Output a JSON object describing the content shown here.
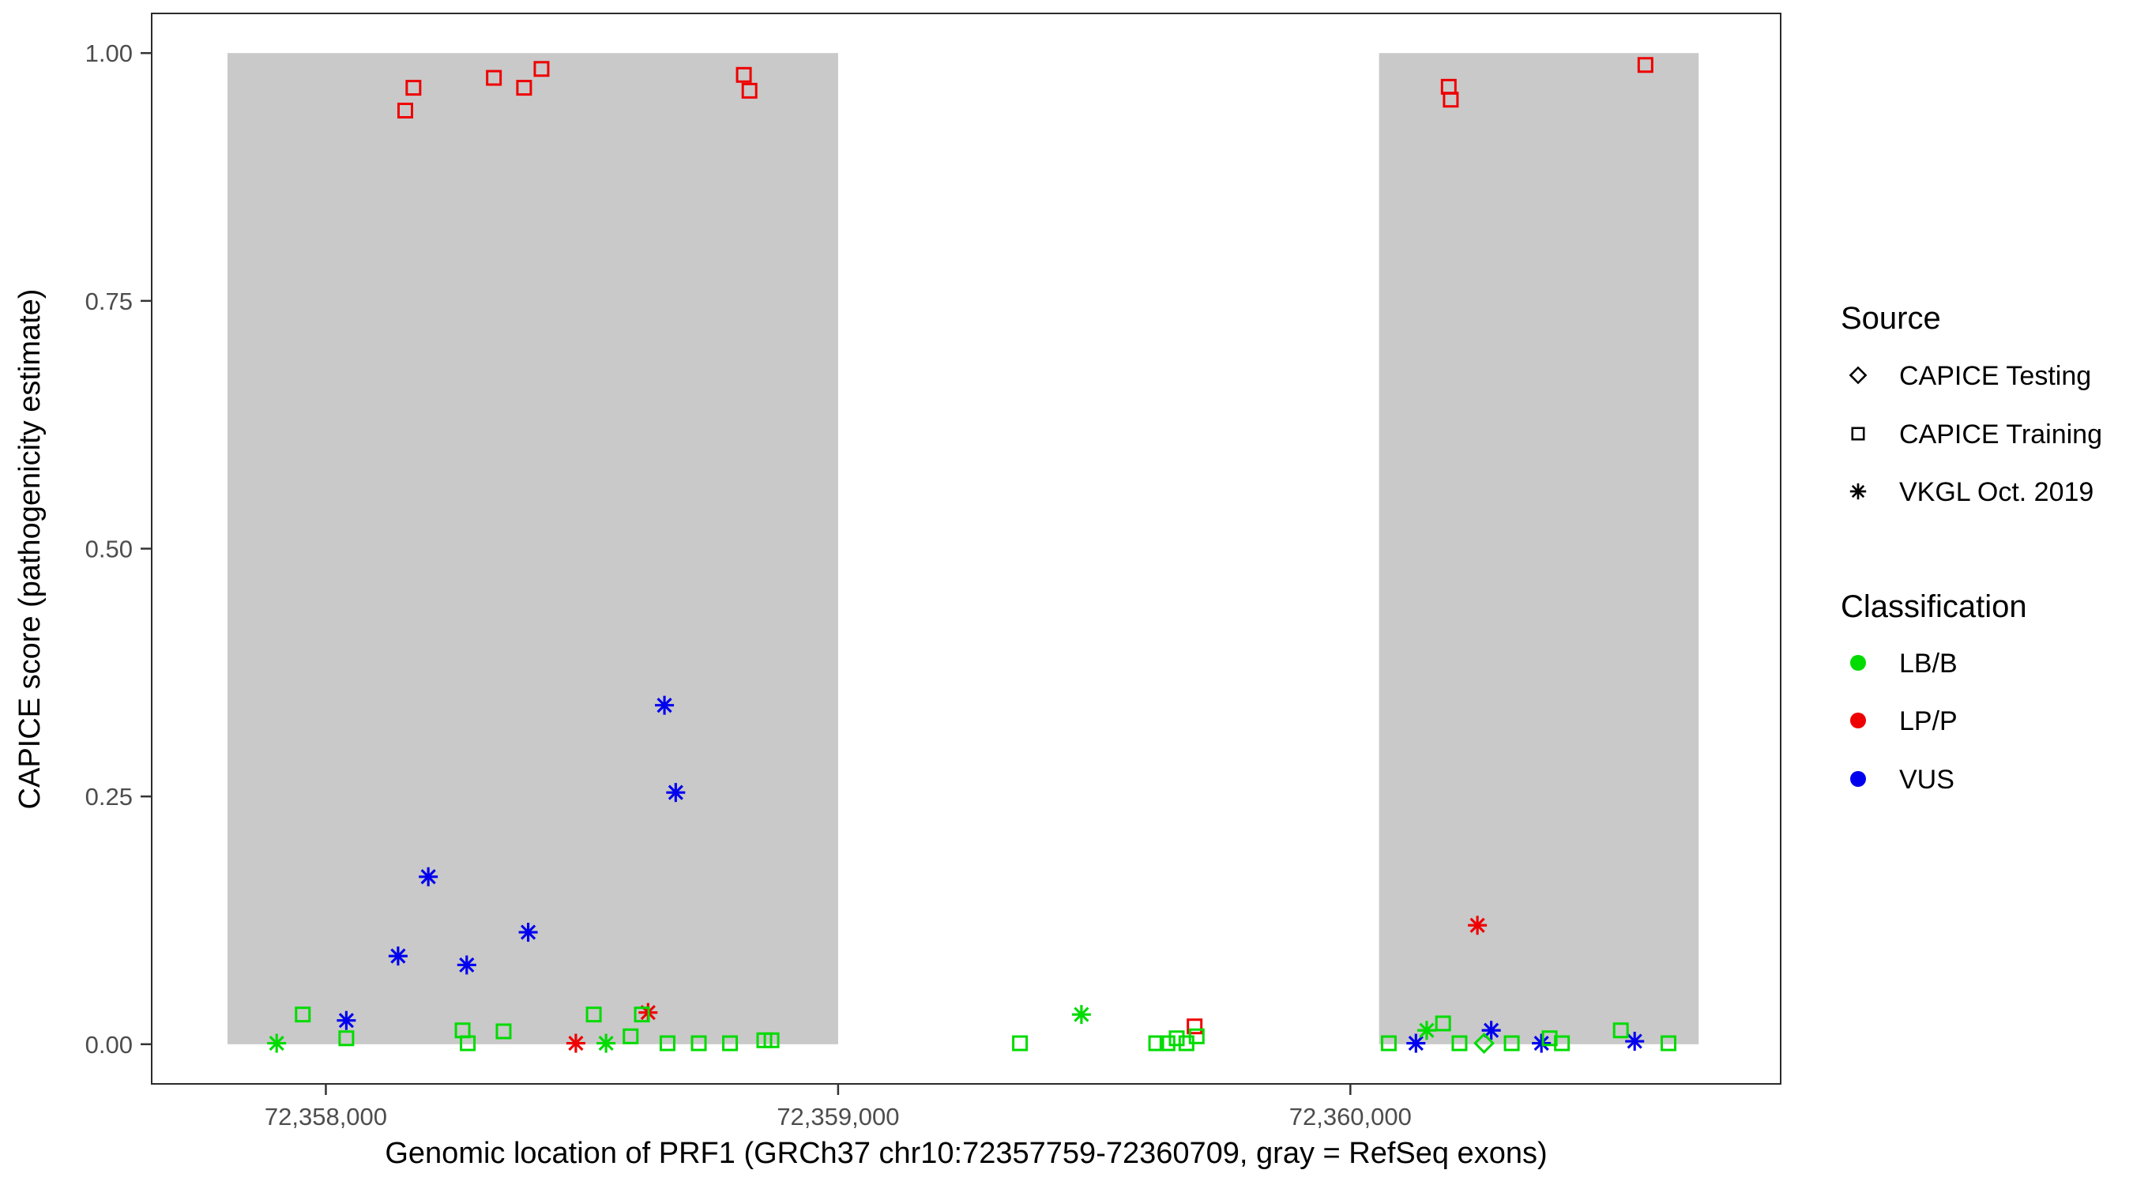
{
  "chart_data": {
    "type": "scatter",
    "title": "",
    "xlabel": "Genomic location of PRF1 (GRCh37 chr10:72357759-72360709, gray = RefSeq exons)",
    "ylabel": "CAPICE score (pathogenicity estimate)",
    "x_domain": [
      72357660,
      72360840
    ],
    "y_domain": [
      -0.04,
      1.04
    ],
    "x_ticks": [
      {
        "value": 72358000,
        "label": "72,358,000"
      },
      {
        "value": 72359000,
        "label": "72,359,000"
      },
      {
        "value": 72360000,
        "label": "72,360,000"
      }
    ],
    "y_ticks": [
      {
        "value": 0.0,
        "label": "0.00"
      },
      {
        "value": 0.25,
        "label": "0.25"
      },
      {
        "value": 0.5,
        "label": "0.50"
      },
      {
        "value": 0.75,
        "label": "0.75"
      },
      {
        "value": 1.0,
        "label": "1.00"
      }
    ],
    "grid": false,
    "exon_color": "#C9C9C9",
    "exons": [
      {
        "x_start": 72357808,
        "x_end": 72359000,
        "y_start": 0.0,
        "y_end": 1.0
      },
      {
        "x_start": 72360056,
        "x_end": 72360680,
        "y_start": 0.0,
        "y_end": 1.0
      }
    ],
    "legend": {
      "source_title": "Source",
      "classification_title": "Classification",
      "position": "right"
    },
    "sources": [
      {
        "id": "testing",
        "label": "CAPICE Testing",
        "shape": "diamond"
      },
      {
        "id": "training",
        "label": "CAPICE Training",
        "shape": "square"
      },
      {
        "id": "vkgl",
        "label": "VKGL Oct. 2019",
        "shape": "asterisk"
      }
    ],
    "classifications": [
      {
        "id": "LB/B",
        "label": "LB/B",
        "color": "#00DB00"
      },
      {
        "id": "LP/P",
        "label": "LP/P",
        "color": "#EE0000"
      },
      {
        "id": "VUS",
        "label": "VUS",
        "color": "#0000EE"
      }
    ],
    "points": [
      {
        "x": 72358155,
        "y": 0.942,
        "source": "training",
        "class": "LP/P"
      },
      {
        "x": 72358171,
        "y": 0.965,
        "source": "training",
        "class": "LP/P"
      },
      {
        "x": 72358328,
        "y": 0.975,
        "source": "training",
        "class": "LP/P"
      },
      {
        "x": 72358387,
        "y": 0.965,
        "source": "training",
        "class": "LP/P"
      },
      {
        "x": 72358421,
        "y": 0.984,
        "source": "training",
        "class": "LP/P"
      },
      {
        "x": 72358816,
        "y": 0.978,
        "source": "training",
        "class": "LP/P"
      },
      {
        "x": 72358827,
        "y": 0.962,
        "source": "training",
        "class": "LP/P"
      },
      {
        "x": 72360192,
        "y": 0.966,
        "source": "training",
        "class": "LP/P"
      },
      {
        "x": 72360196,
        "y": 0.953,
        "source": "training",
        "class": "LP/P"
      },
      {
        "x": 72360576,
        "y": 0.988,
        "source": "training",
        "class": "LP/P"
      },
      {
        "x": 72359696,
        "y": 0.018,
        "source": "training",
        "class": "LP/P"
      },
      {
        "x": 72358040,
        "y": 0.024,
        "source": "vkgl",
        "class": "VUS"
      },
      {
        "x": 72358141,
        "y": 0.089,
        "source": "vkgl",
        "class": "VUS"
      },
      {
        "x": 72358200,
        "y": 0.169,
        "source": "vkgl",
        "class": "VUS"
      },
      {
        "x": 72358275,
        "y": 0.08,
        "source": "vkgl",
        "class": "VUS"
      },
      {
        "x": 72358395,
        "y": 0.113,
        "source": "vkgl",
        "class": "VUS"
      },
      {
        "x": 72358661,
        "y": 0.342,
        "source": "vkgl",
        "class": "VUS"
      },
      {
        "x": 72358683,
        "y": 0.254,
        "source": "vkgl",
        "class": "VUS"
      },
      {
        "x": 72360128,
        "y": 0.001,
        "source": "vkgl",
        "class": "VUS"
      },
      {
        "x": 72360275,
        "y": 0.014,
        "source": "vkgl",
        "class": "VUS"
      },
      {
        "x": 72360373,
        "y": 0.001,
        "source": "vkgl",
        "class": "VUS"
      },
      {
        "x": 72360555,
        "y": 0.003,
        "source": "vkgl",
        "class": "VUS"
      },
      {
        "x": 72358488,
        "y": 0.001,
        "source": "vkgl",
        "class": "LP/P"
      },
      {
        "x": 72358629,
        "y": 0.032,
        "source": "vkgl",
        "class": "LP/P"
      },
      {
        "x": 72360248,
        "y": 0.12,
        "source": "vkgl",
        "class": "LP/P"
      },
      {
        "x": 72357904,
        "y": 0.001,
        "source": "vkgl",
        "class": "LB/B"
      },
      {
        "x": 72358547,
        "y": 0.001,
        "source": "vkgl",
        "class": "LB/B"
      },
      {
        "x": 72359475,
        "y": 0.03,
        "source": "vkgl",
        "class": "LB/B"
      },
      {
        "x": 72360149,
        "y": 0.014,
        "source": "vkgl",
        "class": "LB/B"
      },
      {
        "x": 72357955,
        "y": 0.03,
        "source": "training",
        "class": "LB/B"
      },
      {
        "x": 72358040,
        "y": 0.006,
        "source": "training",
        "class": "LB/B"
      },
      {
        "x": 72358267,
        "y": 0.014,
        "source": "training",
        "class": "LB/B"
      },
      {
        "x": 72358277,
        "y": 0.001,
        "source": "training",
        "class": "LB/B"
      },
      {
        "x": 72358347,
        "y": 0.013,
        "source": "training",
        "class": "LB/B"
      },
      {
        "x": 72358523,
        "y": 0.03,
        "source": "training",
        "class": "LB/B"
      },
      {
        "x": 72358595,
        "y": 0.008,
        "source": "training",
        "class": "LB/B"
      },
      {
        "x": 72358617,
        "y": 0.03,
        "source": "training",
        "class": "LB/B"
      },
      {
        "x": 72358667,
        "y": 0.001,
        "source": "training",
        "class": "LB/B"
      },
      {
        "x": 72358728,
        "y": 0.001,
        "source": "training",
        "class": "LB/B"
      },
      {
        "x": 72358789,
        "y": 0.001,
        "source": "training",
        "class": "LB/B"
      },
      {
        "x": 72358856,
        "y": 0.004,
        "source": "training",
        "class": "LB/B"
      },
      {
        "x": 72358870,
        "y": 0.004,
        "source": "training",
        "class": "LB/B"
      },
      {
        "x": 72359355,
        "y": 0.001,
        "source": "training",
        "class": "LB/B"
      },
      {
        "x": 72359621,
        "y": 0.001,
        "source": "training",
        "class": "LB/B"
      },
      {
        "x": 72359643,
        "y": 0.001,
        "source": "training",
        "class": "LB/B"
      },
      {
        "x": 72359661,
        "y": 0.006,
        "source": "training",
        "class": "LB/B"
      },
      {
        "x": 72359680,
        "y": 0.001,
        "source": "training",
        "class": "LB/B"
      },
      {
        "x": 72359700,
        "y": 0.008,
        "source": "training",
        "class": "LB/B"
      },
      {
        "x": 72360075,
        "y": 0.001,
        "source": "training",
        "class": "LB/B"
      },
      {
        "x": 72360181,
        "y": 0.021,
        "source": "training",
        "class": "LB/B"
      },
      {
        "x": 72360213,
        "y": 0.001,
        "source": "training",
        "class": "LB/B"
      },
      {
        "x": 72360315,
        "y": 0.001,
        "source": "training",
        "class": "LB/B"
      },
      {
        "x": 72360389,
        "y": 0.006,
        "source": "training",
        "class": "LB/B"
      },
      {
        "x": 72360413,
        "y": 0.001,
        "source": "training",
        "class": "LB/B"
      },
      {
        "x": 72360528,
        "y": 0.014,
        "source": "training",
        "class": "LB/B"
      },
      {
        "x": 72360621,
        "y": 0.001,
        "source": "training",
        "class": "LB/B"
      },
      {
        "x": 72360261,
        "y": 0.001,
        "source": "testing",
        "class": "LB/B"
      }
    ]
  },
  "style": {
    "panel_border_color": "#2b2b2b",
    "tick_mark_color": "#333333",
    "tick_label_color": "#4D4D4D",
    "legend_symbol_color": "#000000",
    "background": "#FFFFFF"
  }
}
